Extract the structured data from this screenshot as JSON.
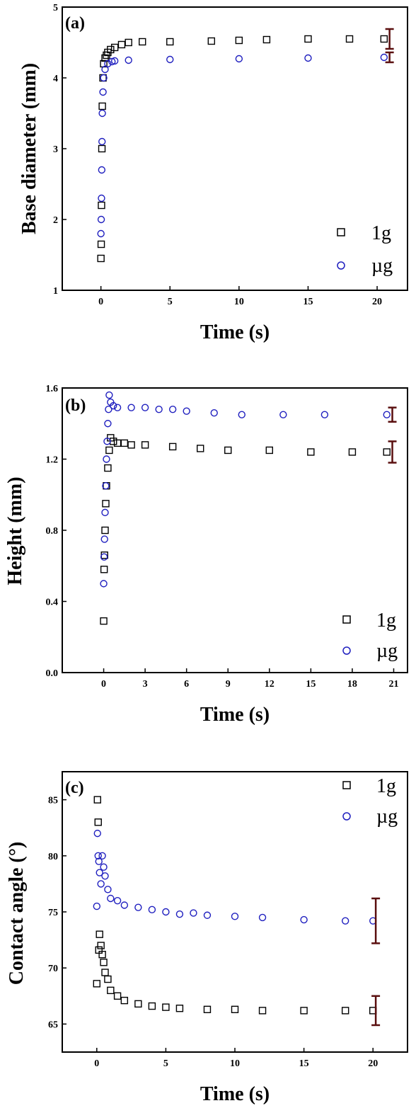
{
  "colors": {
    "series_1g": "#000000",
    "series_ug": "#1f1fbf",
    "errorbar": "#5a0f0f"
  },
  "chart_data": [
    {
      "id": "a",
      "type": "scatter",
      "panel_label": "(a)",
      "xlabel": "Time (s)",
      "ylabel": "Base diameter (mm)",
      "xlim": [
        -2.8,
        22.2
      ],
      "ylim": [
        1,
        5
      ],
      "xticks": [
        0,
        5,
        10,
        15,
        20
      ],
      "yticks": [
        1,
        2,
        3,
        4,
        5
      ],
      "grid": false,
      "legend_position": "bottom-right",
      "series": [
        {
          "name": "1g",
          "marker": "square",
          "x": [
            0,
            0.02,
            0.04,
            0.07,
            0.1,
            0.15,
            0.2,
            0.3,
            0.4,
            0.5,
            0.7,
            1.0,
            1.5,
            2,
            3,
            5,
            8,
            10,
            12,
            15,
            18,
            20.5
          ],
          "y": [
            1.45,
            1.65,
            2.2,
            3.0,
            3.6,
            4.0,
            4.2,
            4.28,
            4.32,
            4.36,
            4.4,
            4.43,
            4.47,
            4.5,
            4.51,
            4.51,
            4.52,
            4.53,
            4.54,
            4.55,
            4.55,
            4.55
          ],
          "error": {
            "x": 20.9,
            "y": 4.55,
            "minus": 0.14,
            "plus": 0.14
          }
        },
        {
          "name": "µg",
          "marker": "circle",
          "x": [
            0,
            0.02,
            0.04,
            0.06,
            0.08,
            0.1,
            0.15,
            0.2,
            0.3,
            0.5,
            0.8,
            1.0,
            2,
            5,
            10,
            15,
            20.5
          ],
          "y": [
            1.8,
            2.0,
            2.3,
            2.7,
            3.1,
            3.5,
            3.8,
            4.0,
            4.12,
            4.2,
            4.23,
            4.24,
            4.25,
            4.26,
            4.27,
            4.28,
            4.29
          ],
          "error": {
            "x": 20.9,
            "y": 4.29,
            "minus": 0.07,
            "plus": 0.07
          }
        }
      ]
    },
    {
      "id": "b",
      "type": "scatter",
      "panel_label": "(b)",
      "xlabel": "Time (s)",
      "ylabel": "Height (mm)",
      "xlim": [
        -3,
        22
      ],
      "ylim": [
        0,
        1.6
      ],
      "xticks": [
        0,
        3,
        6,
        9,
        12,
        15,
        18,
        21
      ],
      "yticks": [
        0.0,
        0.4,
        0.8,
        1.2,
        1.6
      ],
      "ytick_labels": [
        "0.0",
        "0.4",
        "0.8",
        "1.2",
        "1.6"
      ],
      "grid": false,
      "legend_position": "bottom-right",
      "series": [
        {
          "name": "1g",
          "marker": "square",
          "x": [
            0,
            0.03,
            0.06,
            0.1,
            0.15,
            0.2,
            0.3,
            0.4,
            0.5,
            0.7,
            1.0,
            1.5,
            2,
            3,
            5,
            7,
            9,
            12,
            15,
            18,
            20.5
          ],
          "y": [
            0.29,
            0.58,
            0.66,
            0.8,
            0.95,
            1.05,
            1.15,
            1.25,
            1.32,
            1.3,
            1.29,
            1.29,
            1.28,
            1.28,
            1.27,
            1.26,
            1.25,
            1.25,
            1.24,
            1.24,
            1.24
          ],
          "error": {
            "x": 20.9,
            "y": 1.24,
            "minus": 0.06,
            "plus": 0.06
          }
        },
        {
          "name": "µg",
          "marker": "circle",
          "x": [
            0,
            0.03,
            0.06,
            0.1,
            0.15,
            0.2,
            0.25,
            0.3,
            0.35,
            0.4,
            0.5,
            0.7,
            1.0,
            2,
            3,
            4,
            5,
            6,
            8,
            10,
            13,
            16,
            20.5
          ],
          "y": [
            0.5,
            0.65,
            0.75,
            0.9,
            1.05,
            1.2,
            1.3,
            1.4,
            1.48,
            1.56,
            1.52,
            1.5,
            1.49,
            1.49,
            1.49,
            1.48,
            1.48,
            1.47,
            1.46,
            1.45,
            1.45,
            1.45,
            1.45
          ],
          "error": {
            "x": 20.9,
            "y": 1.45,
            "minus": 0.04,
            "plus": 0.04
          }
        }
      ]
    },
    {
      "id": "c",
      "type": "scatter",
      "panel_label": "(c)",
      "xlabel": "Time (s)",
      "ylabel": "Contact angle (°)",
      "xlim": [
        -2.5,
        22.5
      ],
      "ylim": [
        62.5,
        87.5
      ],
      "xticks": [
        0,
        5,
        10,
        15,
        20
      ],
      "yticks": [
        65,
        70,
        75,
        80,
        85
      ],
      "grid": false,
      "legend_position": "top-right",
      "series": [
        {
          "name": "1g",
          "marker": "square",
          "x": [
            0,
            0.05,
            0.1,
            0.15,
            0.2,
            0.3,
            0.4,
            0.5,
            0.6,
            0.8,
            1.0,
            1.5,
            2,
            3,
            4,
            5,
            6,
            8,
            10,
            12,
            15,
            18,
            20
          ],
          "y": [
            68.6,
            85.0,
            83.0,
            71.6,
            73.0,
            72.0,
            71.2,
            70.5,
            69.6,
            69.0,
            68.0,
            67.5,
            67.1,
            66.8,
            66.6,
            66.5,
            66.4,
            66.3,
            66.3,
            66.2,
            66.2,
            66.2,
            66.2
          ],
          "error": {
            "x": 20.2,
            "y": 66.2,
            "minus": 1.3,
            "plus": 1.3
          }
        },
        {
          "name": "µg",
          "marker": "circle",
          "x": [
            0,
            0.05,
            0.1,
            0.15,
            0.2,
            0.3,
            0.4,
            0.5,
            0.6,
            0.8,
            1.0,
            1.5,
            2,
            3,
            4,
            5,
            6,
            7,
            8,
            10,
            12,
            15,
            18,
            20
          ],
          "y": [
            75.5,
            82.0,
            80.0,
            79.5,
            78.5,
            77.5,
            80.0,
            79.0,
            78.2,
            77.0,
            76.2,
            76.0,
            75.6,
            75.4,
            75.2,
            75.0,
            74.8,
            74.9,
            74.7,
            74.6,
            74.5,
            74.3,
            74.2,
            74.2
          ],
          "error": {
            "x": 20.2,
            "y": 74.2,
            "minus": 2.0,
            "plus": 2.0
          }
        }
      ]
    }
  ]
}
